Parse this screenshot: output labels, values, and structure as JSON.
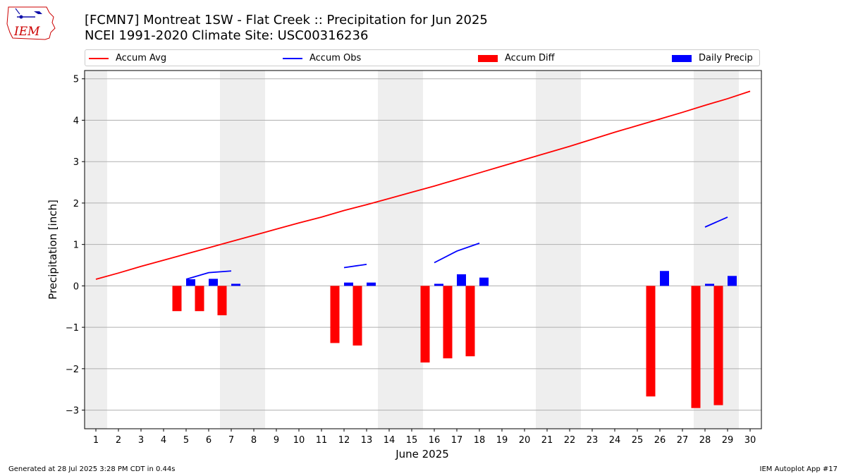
{
  "header": {
    "title_line1": "[FCMN7] Montreat 1SW - Flat Creek :: Precipitation for Jun 2025",
    "title_line2": "NCEI 1991-2020 Climate Site: USC00316236",
    "logo_text": "IEM"
  },
  "footer": {
    "generated": "Generated at 28 Jul 2025 3:28 PM CDT in 0.44s",
    "app": "IEM Autoplot App #17"
  },
  "colors": {
    "avg": "#ff0000",
    "obs": "#0000ff",
    "diff": "#ff0000",
    "daily": "#0000ff",
    "weekend_shade": "#eeeeee",
    "grid": "#b0b0b0"
  },
  "chart_data": {
    "type": "bar",
    "xlabel": "June 2025",
    "ylabel": "Precipitation [inch]",
    "xlim": [
      0.5,
      30.5
    ],
    "ylim": [
      -3.45,
      5.2
    ],
    "yticks": [
      5,
      4,
      3,
      2,
      1,
      0,
      -1,
      -2,
      -3
    ],
    "ytick_labels": [
      "5",
      "4",
      "3",
      "2",
      "1",
      "0",
      "−1",
      "−2",
      "−3"
    ],
    "grid": "horizontal",
    "legend_placement": "top",
    "legend": [
      "Accum Avg",
      "Accum Obs",
      "Accum Diff",
      "Daily Precip"
    ],
    "days": [
      1,
      2,
      3,
      4,
      5,
      6,
      7,
      8,
      9,
      10,
      11,
      12,
      13,
      14,
      15,
      16,
      17,
      18,
      19,
      20,
      21,
      22,
      23,
      24,
      25,
      26,
      27,
      28,
      29,
      30
    ],
    "shaded_weekends": [
      [
        1,
        1
      ],
      [
        7,
        8
      ],
      [
        14,
        15
      ],
      [
        21,
        22
      ],
      [
        28,
        29
      ]
    ],
    "accum_avg": [
      0.16,
      0.31,
      0.47,
      0.62,
      0.77,
      0.92,
      1.07,
      1.22,
      1.37,
      1.52,
      1.66,
      1.82,
      1.96,
      2.11,
      2.26,
      2.41,
      2.57,
      2.73,
      2.89,
      3.05,
      3.21,
      3.37,
      3.54,
      3.71,
      3.87,
      4.03,
      4.19,
      4.36,
      4.52,
      4.7
    ],
    "accum_obs": [
      [
        [
          5,
          0.16
        ],
        [
          6,
          0.32
        ],
        [
          7,
          0.36
        ]
      ],
      [
        [
          12,
          0.44
        ],
        [
          13,
          0.52
        ]
      ],
      [
        [
          16,
          0.56
        ],
        [
          17,
          0.84
        ],
        [
          18,
          1.03
        ]
      ],
      [
        [
          28,
          1.42
        ],
        [
          29,
          1.66
        ]
      ]
    ],
    "accum_diff": [
      {
        "day": 5,
        "value": -0.61
      },
      {
        "day": 6,
        "value": -0.61
      },
      {
        "day": 7,
        "value": -0.71
      },
      {
        "day": 12,
        "value": -1.38
      },
      {
        "day": 13,
        "value": -1.44
      },
      {
        "day": 16,
        "value": -1.85
      },
      {
        "day": 17,
        "value": -1.75
      },
      {
        "day": 18,
        "value": -1.7
      },
      {
        "day": 26,
        "value": -2.67
      },
      {
        "day": 28,
        "value": -2.95
      },
      {
        "day": 29,
        "value": -2.88
      }
    ],
    "daily_precip": [
      {
        "day": 5,
        "value": 0.16
      },
      {
        "day": 6,
        "value": 0.17
      },
      {
        "day": 7,
        "value": 0.05
      },
      {
        "day": 12,
        "value": 0.08
      },
      {
        "day": 13,
        "value": 0.08
      },
      {
        "day": 16,
        "value": 0.05
      },
      {
        "day": 17,
        "value": 0.28
      },
      {
        "day": 18,
        "value": 0.2
      },
      {
        "day": 26,
        "value": 0.36
      },
      {
        "day": 28,
        "value": 0.05
      },
      {
        "day": 29,
        "value": 0.24
      }
    ]
  }
}
